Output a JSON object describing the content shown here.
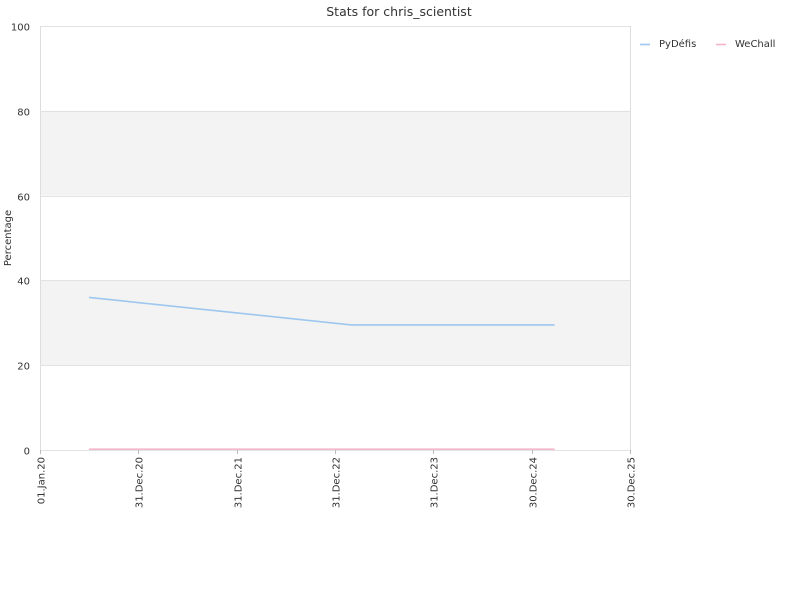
{
  "chart_data": {
    "type": "line",
    "title": "Stats for chris_scientist",
    "xlabel": "",
    "ylabel": "Percentage",
    "ylim": [
      0,
      100
    ],
    "yticks": [
      0,
      20,
      40,
      60,
      80,
      100
    ],
    "xlim": [
      "2020-01-01",
      "2025-12-30"
    ],
    "xticks": [
      {
        "date": "2020-01-01",
        "label": "01.Jan.20"
      },
      {
        "date": "2020-12-31",
        "label": "31.Dec.20"
      },
      {
        "date": "2021-12-31",
        "label": "31.Dec.21"
      },
      {
        "date": "2022-12-31",
        "label": "31.Dec.22"
      },
      {
        "date": "2023-12-31",
        "label": "31.Dec.23"
      },
      {
        "date": "2024-12-30",
        "label": "30.Dec.24"
      },
      {
        "date": "2025-12-30",
        "label": "30.Dec.25"
      }
    ],
    "grid": true,
    "legend_position": "top-right",
    "series": [
      {
        "name": "PyDéfis",
        "color": "#9ec7ef",
        "points": [
          {
            "x": "2020-07-01",
            "y": 36
          },
          {
            "x": "2023-03-01",
            "y": 29.5
          },
          {
            "x": "2025-03-25",
            "y": 29.5
          }
        ]
      },
      {
        "name": "WeChall",
        "color": "#f3b6cc",
        "points": [
          {
            "x": "2020-07-01",
            "y": 0.2
          },
          {
            "x": "2025-03-25",
            "y": 0.2
          }
        ]
      }
    ]
  }
}
